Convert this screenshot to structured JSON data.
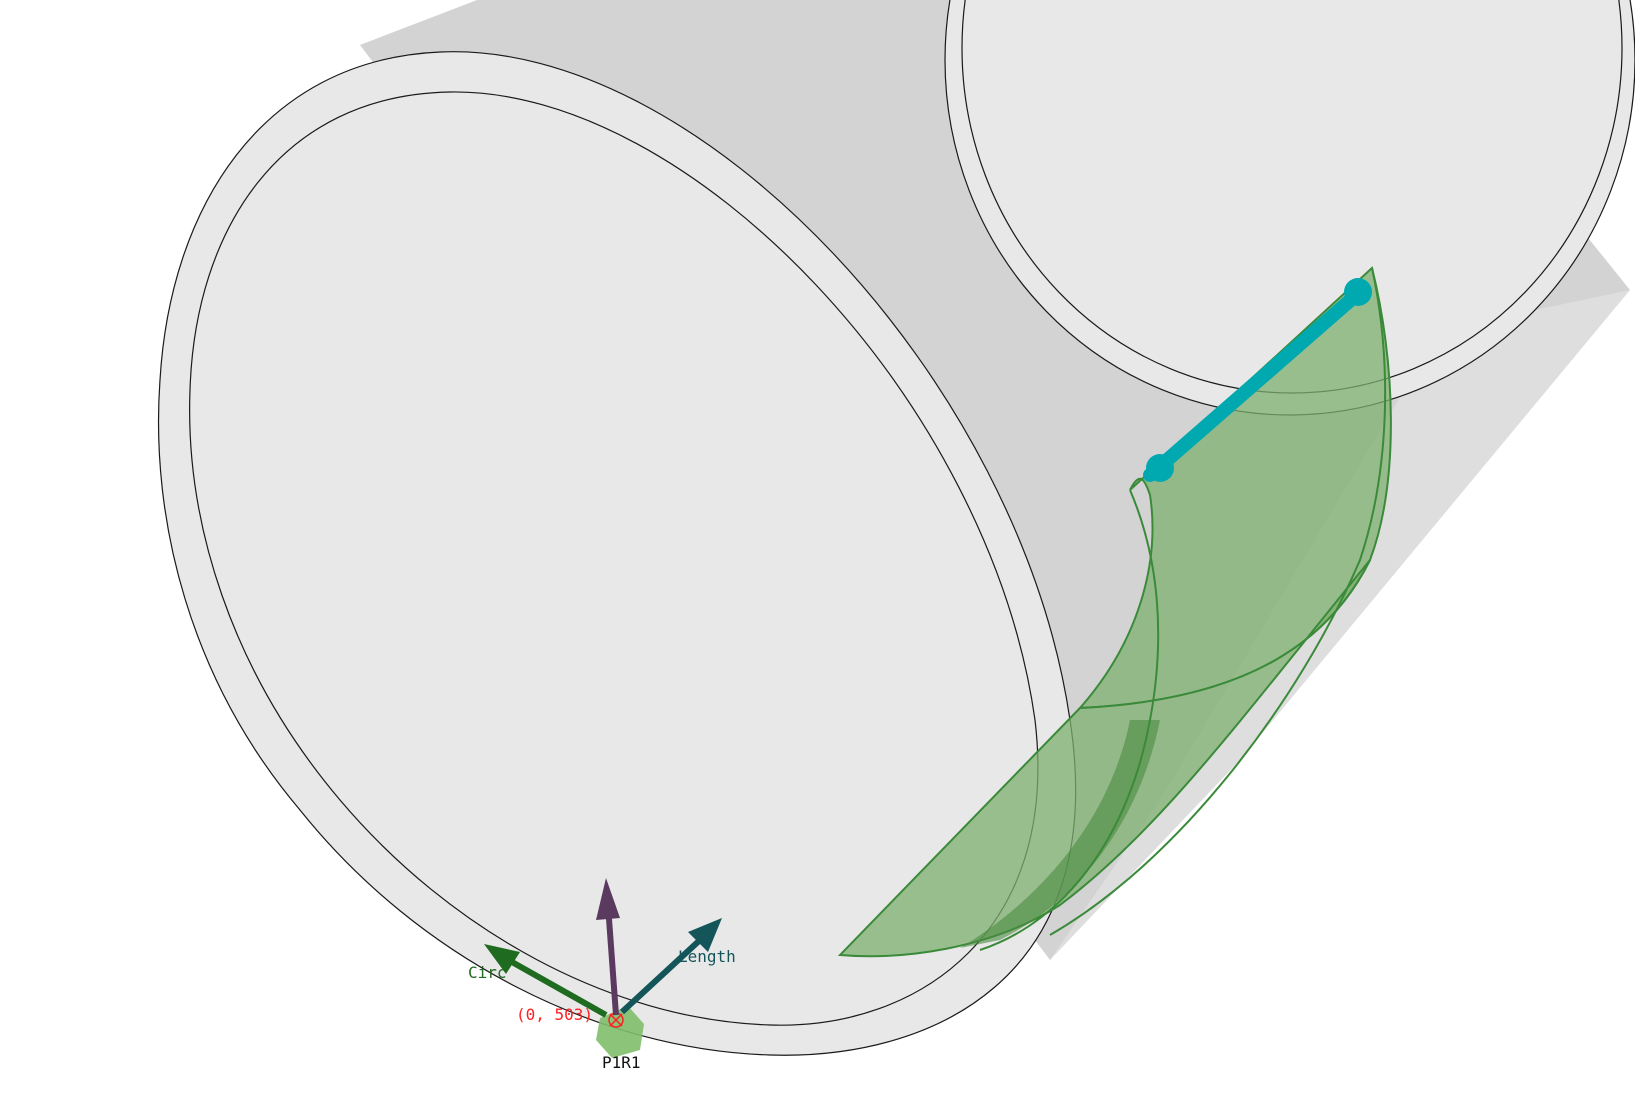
{
  "viewport": {
    "background": "#ffffff",
    "pipe_fill": "#e8e8e8",
    "pipe_shadow": "#d3d3d3",
    "outline_color": "#1a1a1a",
    "patch_color": "#5a9a50",
    "patch_fill": "#7fb070",
    "edge_highlight": "#00a8b0"
  },
  "axes": {
    "circ_label": "Circ",
    "length_label": "Length",
    "circ_color": "#1f6b1f",
    "length_color": "#14555a",
    "normal_color": "#5a3a5e"
  },
  "origin": {
    "coord_label": "(0, 503)",
    "coord_color": "#ff2020",
    "marker_label": "P1R1",
    "marker_color": "#7fbf6a"
  }
}
